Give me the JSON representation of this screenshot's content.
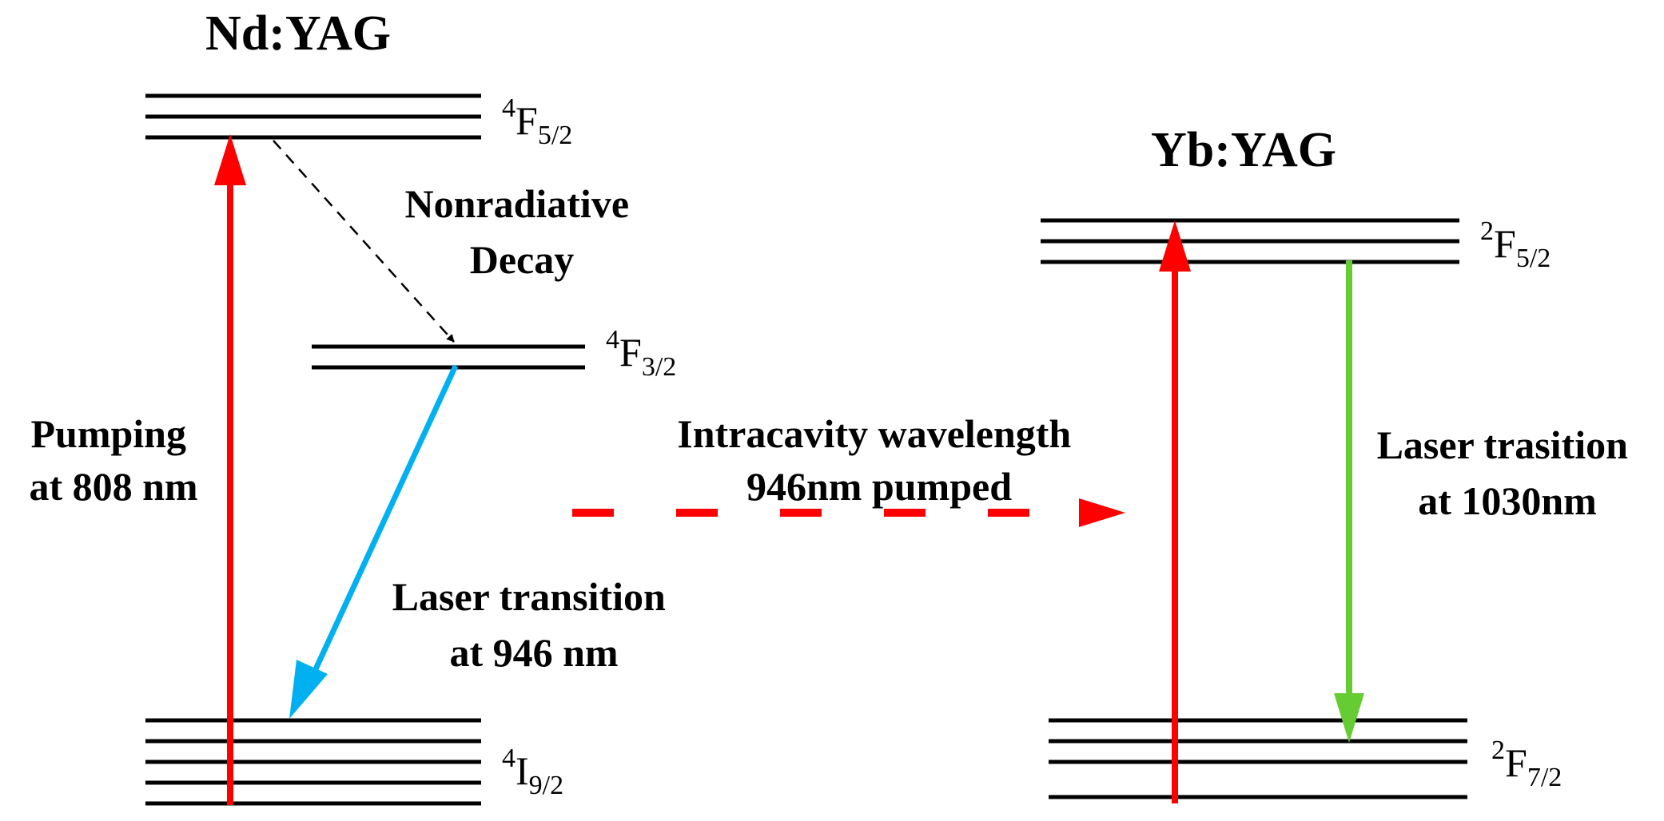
{
  "colors": {
    "pump": "#ff0000",
    "laser_946": "#00b0f0",
    "laser_1030": "#66cc33",
    "levels": "#000000",
    "nonradiative": "#000000"
  },
  "nd_yag": {
    "title": "Nd:YAG",
    "levels": {
      "upper": {
        "sup": "4",
        "base": "F",
        "sub": "5/2"
      },
      "metastable": {
        "sup": "4",
        "base": "F",
        "sub": "3/2"
      },
      "ground": {
        "sup": "4",
        "base": "I",
        "sub": "9/2"
      }
    },
    "pumping": {
      "line1": "Pumping",
      "line2": "at 808 nm"
    },
    "nonradiative": {
      "line1": "Nonradiative",
      "line2": "Decay"
    },
    "laser": {
      "line1": "Laser transition",
      "line2": "at 946 nm"
    }
  },
  "intracavity": {
    "line1": "Intracavity wavelength",
    "line2": "946nm pumped"
  },
  "yb_yag": {
    "title": "Yb:YAG",
    "levels": {
      "upper": {
        "sup": "2",
        "base": "F",
        "sub": "5/2"
      },
      "ground": {
        "sup": "2",
        "base": "F",
        "sub": "7/2"
      }
    },
    "laser": {
      "line1": "Laser trasition",
      "line2": "at 1030nm"
    }
  }
}
